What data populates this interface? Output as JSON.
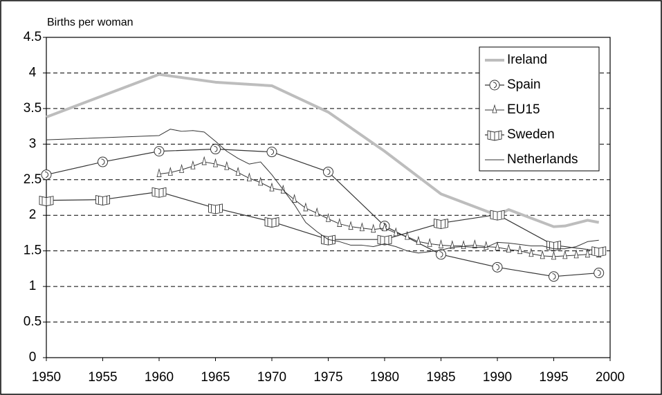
{
  "chart_data": {
    "type": "line",
    "y_label": "Births per woman",
    "xlim": [
      1950,
      2000
    ],
    "xticks": [
      1950,
      1955,
      1960,
      1965,
      1970,
      1975,
      1980,
      1985,
      1990,
      1995,
      2000
    ],
    "ylim": [
      0,
      4.5
    ],
    "yticks": [
      0,
      0.5,
      1,
      1.5,
      2,
      2.5,
      3,
      3.5,
      4,
      4.5
    ],
    "grid": true,
    "legend": "upper right",
    "series": [
      {
        "name": "Ireland",
        "color": "#bdbdbd",
        "line_width": 4,
        "marker": "none",
        "x": [
          1950,
          1960,
          1965,
          1970,
          1975,
          1980,
          1985,
          1990,
          1991,
          1995,
          1996,
          1998,
          1999
        ],
        "values": [
          3.38,
          3.98,
          3.87,
          3.82,
          3.45,
          2.9,
          2.3,
          2.0,
          2.08,
          1.84,
          1.85,
          1.93,
          1.9
        ]
      },
      {
        "name": "Spain",
        "color": "#333333",
        "line_width": 1.2,
        "marker": "circle",
        "x": [
          1950,
          1955,
          1960,
          1965,
          1970,
          1975,
          1980,
          1985,
          1990,
          1995,
          1999
        ],
        "values": [
          2.57,
          2.75,
          2.9,
          2.93,
          2.89,
          2.61,
          1.85,
          1.45,
          1.27,
          1.14,
          1.19
        ]
      },
      {
        "name": "EU15",
        "color": "#333333",
        "line_width": 1,
        "marker": "triangle",
        "x": [
          1960,
          1961,
          1962,
          1963,
          1964,
          1965,
          1966,
          1967,
          1968,
          1969,
          1970,
          1971,
          1972,
          1973,
          1974,
          1975,
          1976,
          1977,
          1978,
          1979,
          1980,
          1981,
          1982,
          1983,
          1984,
          1985,
          1986,
          1987,
          1988,
          1989,
          1990,
          1991,
          1992,
          1993,
          1994,
          1995,
          1996,
          1997,
          1998,
          1999
        ],
        "values": [
          2.58,
          2.6,
          2.64,
          2.69,
          2.75,
          2.72,
          2.68,
          2.6,
          2.52,
          2.46,
          2.38,
          2.35,
          2.22,
          2.1,
          2.03,
          1.95,
          1.88,
          1.84,
          1.82,
          1.8,
          1.82,
          1.75,
          1.7,
          1.63,
          1.6,
          1.58,
          1.57,
          1.57,
          1.58,
          1.56,
          1.55,
          1.52,
          1.5,
          1.46,
          1.43,
          1.42,
          1.43,
          1.44,
          1.45,
          1.45
        ]
      },
      {
        "name": "Sweden",
        "color": "#333333",
        "line_width": 1.2,
        "marker": "book",
        "x": [
          1950,
          1955,
          1960,
          1965,
          1970,
          1975,
          1980,
          1985,
          1990,
          1995,
          1999
        ],
        "values": [
          2.21,
          2.22,
          2.33,
          2.1,
          1.91,
          1.66,
          1.66,
          1.89,
          2.01,
          1.58,
          1.5
        ]
      },
      {
        "name": "Netherlands",
        "color": "#333333",
        "line_width": 1,
        "marker": "none",
        "x": [
          1950,
          1960,
          1961,
          1962,
          1963,
          1964,
          1965,
          1966,
          1967,
          1968,
          1969,
          1970,
          1971,
          1972,
          1973,
          1974,
          1975,
          1976,
          1977,
          1978,
          1979,
          1980,
          1981,
          1982,
          1983,
          1984,
          1985,
          1986,
          1987,
          1988,
          1989,
          1990,
          1991,
          1992,
          1993,
          1994,
          1995,
          1996,
          1997,
          1998,
          1999
        ],
        "values": [
          3.06,
          3.12,
          3.21,
          3.18,
          3.19,
          3.17,
          3.04,
          2.9,
          2.8,
          2.72,
          2.75,
          2.57,
          2.36,
          2.15,
          1.9,
          1.77,
          1.66,
          1.63,
          1.58,
          1.58,
          1.56,
          1.6,
          1.56,
          1.5,
          1.47,
          1.49,
          1.51,
          1.55,
          1.56,
          1.55,
          1.55,
          1.62,
          1.61,
          1.59,
          1.57,
          1.57,
          1.53,
          1.53,
          1.56,
          1.63,
          1.65
        ]
      }
    ]
  }
}
